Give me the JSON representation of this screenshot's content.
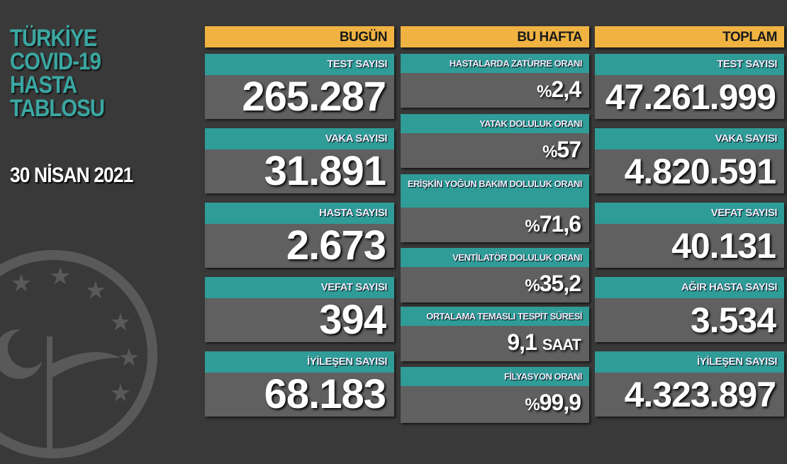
{
  "title_lines": [
    "TÜRKİYE",
    "COVID-19",
    "HASTA",
    "TABLOSU"
  ],
  "date": "30 NİSAN 2021",
  "colors": {
    "background": "#393939",
    "header": "#f0b342",
    "label": "#2f9c98",
    "card": "#606060",
    "title": "#3aa7a2"
  },
  "today": {
    "header": "BUGÜN",
    "items": [
      {
        "label": "TEST SAYISI",
        "value": "265.287"
      },
      {
        "label": "VAKA SAYISI",
        "value": "31.891"
      },
      {
        "label": "HASTA SAYISI",
        "value": "2.673"
      },
      {
        "label": "VEFAT SAYISI",
        "value": "394"
      },
      {
        "label": "İYİLEŞEN SAYISI",
        "value": "68.183"
      }
    ]
  },
  "week": {
    "header": "BU HAFTA",
    "items": [
      {
        "label": "HASTALARDA ZATÜRRE ORANI",
        "prefix": "%",
        "value": "2,4"
      },
      {
        "label": "YATAK DOLULUK ORANI",
        "prefix": "%",
        "value": "57"
      },
      {
        "label": "ERİŞKİN YOĞUN BAKIM DOLULUK ORANI",
        "prefix": "%",
        "value": "71,6"
      },
      {
        "label": "VENTİLATÖR DOLULUK ORANI",
        "prefix": "%",
        "value": "35,2"
      },
      {
        "label": "ORTALAMA TEMASLI TESPİT SÜRESİ",
        "value": "9,1",
        "unit": "SAAT"
      },
      {
        "label": "FİLYASYON ORANI",
        "prefix": "%",
        "value": "99,9"
      }
    ]
  },
  "total": {
    "header": "TOPLAM",
    "items": [
      {
        "label": "TEST SAYISI",
        "value": "47.261.999"
      },
      {
        "label": "VAKA SAYISI",
        "value": "4.820.591"
      },
      {
        "label": "VEFAT SAYISI",
        "value": "40.131"
      },
      {
        "label": "AĞIR HASTA SAYISI",
        "value": "3.534"
      },
      {
        "label": "İYİLEŞEN SAYISI",
        "value": "4.323.897"
      }
    ]
  }
}
